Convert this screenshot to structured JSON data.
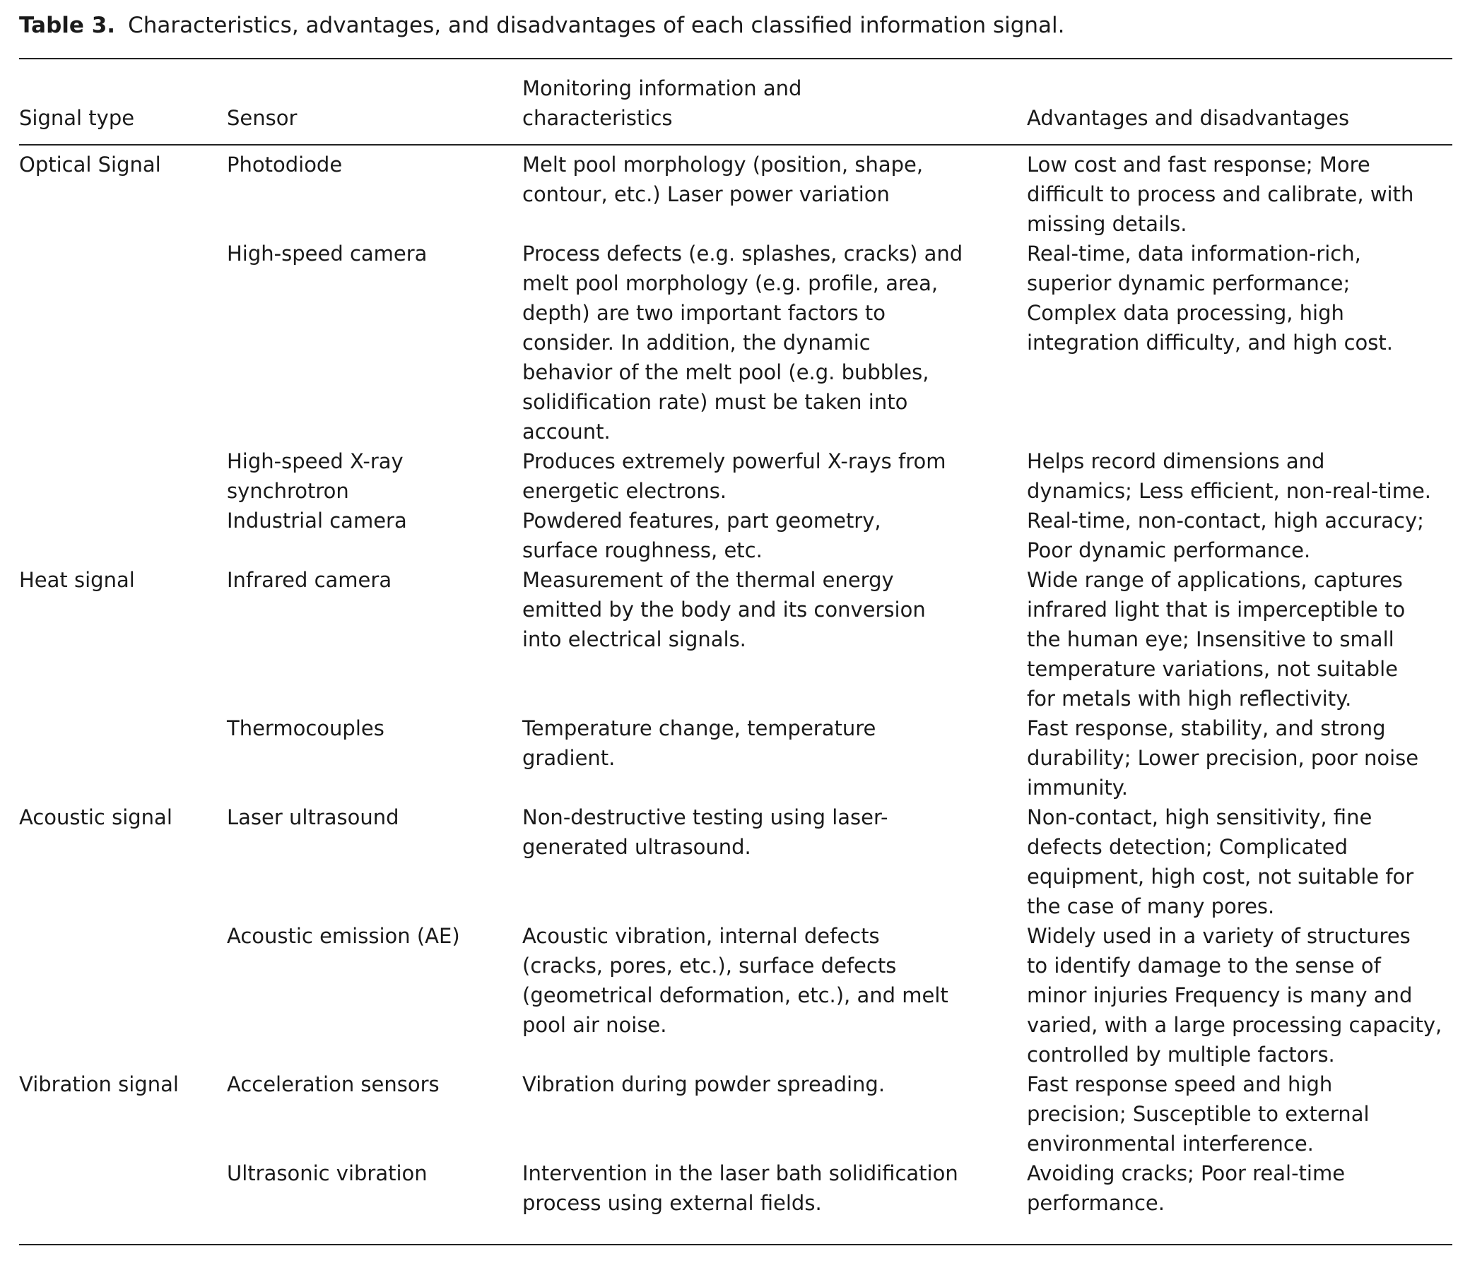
{
  "caption": {
    "label": "Table 3.",
    "text": "Characteristics, advantages, and disadvantages of each classified information signal."
  },
  "table": {
    "headers": [
      [
        "Signal type"
      ],
      [
        "Sensor"
      ],
      [
        "Monitoring information and",
        "characteristics"
      ],
      [
        "Advantages and disadvantages"
      ]
    ],
    "groups": [
      {
        "signal_type": "Optical Signal",
        "rows": [
          {
            "sensor": [
              "Photodiode"
            ],
            "info": [
              "Melt pool morphology (position, shape,",
              "contour, etc.) Laser power variation"
            ],
            "advantages": [
              "Low cost and fast response; More",
              "difficult to process and calibrate, with",
              "missing details."
            ]
          },
          {
            "sensor": [
              "High-speed camera"
            ],
            "info": [
              "Process defects (e.g. splashes, cracks) and",
              "melt pool morphology (e.g. profile, area,",
              "depth) are two important factors to",
              "consider. In addition, the dynamic",
              "behavior of the melt pool (e.g. bubbles,",
              "solidification rate) must be taken into",
              "account."
            ],
            "advantages": [
              "Real-time, data information-rich,",
              "superior dynamic performance;",
              "Complex data processing, high",
              "integration difficulty, and high cost."
            ]
          },
          {
            "sensor": [
              "High-speed X-ray",
              "synchrotron"
            ],
            "info": [
              "Produces extremely powerful X-rays from",
              "energetic electrons."
            ],
            "advantages": [
              "Helps record dimensions and",
              "dynamics; Less efficient, non-real-time."
            ]
          },
          {
            "sensor": [
              "Industrial camera"
            ],
            "info": [
              "Powdered features, part geometry,",
              "surface roughness, etc."
            ],
            "advantages": [
              "Real-time, non-contact, high accuracy;",
              "Poor dynamic performance."
            ]
          }
        ]
      },
      {
        "signal_type": "Heat signal",
        "rows": [
          {
            "sensor": [
              "Infrared camera"
            ],
            "info": [
              "Measurement of the thermal energy",
              "emitted by the body and its conversion",
              "into electrical signals."
            ],
            "advantages": [
              "Wide range of applications, captures",
              "infrared light that is imperceptible to",
              "the human eye; Insensitive to small",
              "temperature variations, not suitable",
              "for metals with high reflectivity."
            ]
          },
          {
            "sensor": [
              "Thermocouples"
            ],
            "info": [
              "Temperature change, temperature",
              "gradient."
            ],
            "advantages": [
              "Fast response, stability, and strong",
              "durability; Lower precision, poor noise",
              "immunity."
            ]
          }
        ]
      },
      {
        "signal_type": "Acoustic signal",
        "rows": [
          {
            "sensor": [
              "Laser ultrasound"
            ],
            "info": [
              "Non-destructive testing using laser-",
              "generated ultrasound."
            ],
            "advantages": [
              "Non-contact, high sensitivity, fine",
              "defects detection; Complicated",
              "equipment, high cost, not suitable for",
              "the case of many pores."
            ]
          },
          {
            "sensor": [
              "Acoustic emission (AE)"
            ],
            "info": [
              "Acoustic vibration, internal defects",
              "(cracks, pores, etc.), surface defects",
              "(geometrical deformation, etc.), and melt",
              "pool air noise."
            ],
            "advantages": [
              "Widely used in a variety of structures",
              "to identify damage to the sense of",
              "minor injuries Frequency is many and",
              "varied, with a large processing capacity,",
              "controlled by multiple factors."
            ]
          }
        ]
      },
      {
        "signal_type": "Vibration signal",
        "rows": [
          {
            "sensor": [
              "Acceleration sensors"
            ],
            "info": [
              "Vibration during powder spreading."
            ],
            "advantages": [
              "Fast response speed and high",
              "precision; Susceptible to external",
              "environmental interference."
            ]
          },
          {
            "sensor": [
              "Ultrasonic vibration"
            ],
            "info": [
              "Intervention in the laser bath solidification",
              "process using external fields."
            ],
            "advantages": [
              "Avoiding cracks; Poor real-time",
              "performance."
            ]
          }
        ]
      }
    ]
  }
}
